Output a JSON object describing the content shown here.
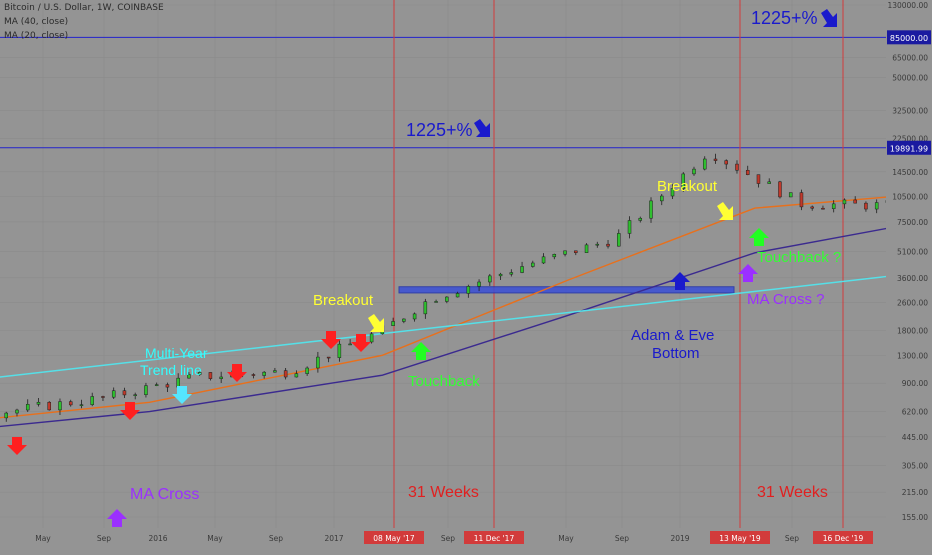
{
  "header": {
    "title": "Bitcoin / U.S. Dollar, 1W, COINBASE",
    "ma40": "MA (40, close)",
    "ma20": "MA (20, close)"
  },
  "colors": {
    "background": "#949494",
    "grid": "#8a8a8a",
    "candle_up": "#2fbf2f",
    "candle_down": "#c0392b",
    "ma_orange": "#e8701c",
    "ma_purple": "#3b2a8f",
    "trend_line": "#55e0e8",
    "horizontal_line": "#2222cc",
    "vertical_line": "#d23b3b",
    "support_zone": "#3a4fd8"
  },
  "chart_data": {
    "type": "candlestick",
    "y_scale": "log",
    "y_axis_ticks": [
      130000,
      85000,
      65000,
      50000,
      32500,
      22500,
      14500,
      10500,
      7500,
      5100,
      3600,
      2600,
      1800,
      1300,
      900,
      620,
      445,
      305,
      215,
      155
    ],
    "x_axis_ticks": [
      "May",
      "Sep",
      "2016",
      "May",
      "Sep",
      "2017",
      "08 May '17",
      "Sep",
      "11 Dec '17",
      "May",
      "Sep",
      "2019",
      "13 May '19",
      "Sep",
      "16 Dec '19"
    ],
    "price_tags": [
      {
        "label": "85000.00",
        "value": 85000
      },
      {
        "label": "19891.99",
        "value": 19891.99
      }
    ],
    "vertical_markers": [
      "08 May '17",
      "11 Dec '17",
      "13 May '19",
      "16 Dec '19"
    ],
    "support_zone": {
      "low": 2950,
      "high": 3200
    },
    "trend_line": [
      {
        "date": "Feb 2015",
        "value": 265
      },
      {
        "date": "Jul 2019",
        "value": 10500
      }
    ],
    "weekly_closes": {
      "start": "Feb 2015",
      "end": "Jun 2019",
      "points": [
        {
          "date": "Feb 2015",
          "close": 250
        },
        {
          "date": "Apr 2015",
          "close": 230
        },
        {
          "date": "Jul 2015",
          "close": 280
        },
        {
          "date": "Aug 2015",
          "close": 215
        },
        {
          "date": "Oct 2015",
          "close": 270
        },
        {
          "date": "Nov 2015",
          "close": 400
        },
        {
          "date": "Dec 2015",
          "close": 430
        },
        {
          "date": "Mar 2016",
          "close": 410
        },
        {
          "date": "Jun 2016",
          "close": 720
        },
        {
          "date": "Aug 2016",
          "close": 575
        },
        {
          "date": "Nov 2016",
          "close": 740
        },
        {
          "date": "Jan 2017",
          "close": 980
        },
        {
          "date": "Mar 2017",
          "close": 1050
        },
        {
          "date": "May 2017",
          "close": 1800
        },
        {
          "date": "Jun 2017",
          "close": 2700
        },
        {
          "date": "Aug 2017",
          "close": 4200
        },
        {
          "date": "Oct 2017",
          "close": 6000
        },
        {
          "date": "Dec 2017",
          "close": 19000
        },
        {
          "date": "Feb 2018",
          "close": 9500
        },
        {
          "date": "Apr 2018",
          "close": 9300
        },
        {
          "date": "Jun 2018",
          "close": 6500
        },
        {
          "date": "Aug 2018",
          "close": 6400
        },
        {
          "date": "Nov 2018",
          "close": 4000
        },
        {
          "date": "Dec 2018",
          "close": 3300
        },
        {
          "date": "Feb 2019",
          "close": 3600
        },
        {
          "date": "Apr 2019",
          "close": 5200
        },
        {
          "date": "May 2019",
          "close": 8000
        },
        {
          "date": "Jun 2019",
          "close": 8300
        }
      ]
    },
    "ma20": [
      {
        "date": "Feb 2015",
        "value": 260
      },
      {
        "date": "Aug 2015",
        "value": 250
      },
      {
        "date": "Jan 2016",
        "value": 380
      },
      {
        "date": "Jun 2016",
        "value": 480
      },
      {
        "date": "Dec 2016",
        "value": 700
      },
      {
        "date": "May 2017",
        "value": 1300
      },
      {
        "date": "Sep 2017",
        "value": 3500
      },
      {
        "date": "Jan 2018",
        "value": 9000
      },
      {
        "date": "Apr 2018",
        "value": 10500
      },
      {
        "date": "Aug 2018",
        "value": 7300
      },
      {
        "date": "Dec 2018",
        "value": 5000
      },
      {
        "date": "Mar 2019",
        "value": 3800
      },
      {
        "date": "Jun 2019",
        "value": 5500
      }
    ],
    "ma40": [
      {
        "date": "Feb 2015",
        "value": 240
      },
      {
        "date": "Aug 2015",
        "value": 255
      },
      {
        "date": "Jan 2016",
        "value": 330
      },
      {
        "date": "Jun 2016",
        "value": 430
      },
      {
        "date": "Dec 2016",
        "value": 620
      },
      {
        "date": "May 2017",
        "value": 1000
      },
      {
        "date": "Sep 2017",
        "value": 2200
      },
      {
        "date": "Jan 2018",
        "value": 5000
      },
      {
        "date": "Jun 2018",
        "value": 8800
      },
      {
        "date": "Oct 2018",
        "value": 8000
      },
      {
        "date": "Feb 2019",
        "value": 6000
      },
      {
        "date": "Jun 2019",
        "value": 5600
      }
    ],
    "annotations": [
      {
        "text": "1225+%",
        "color": "#1a1acc"
      },
      {
        "text": "1225+%",
        "color": "#1a1acc"
      },
      {
        "text": "Breakout",
        "color": "#ffff33"
      },
      {
        "text": "Breakout",
        "color": "#ffff33"
      },
      {
        "text": "Multi-Year",
        "color": "#33ffff"
      },
      {
        "text": "Trend line",
        "color": "#33ffff"
      },
      {
        "text": "Touchback",
        "color": "#33ff33"
      },
      {
        "text": "Touchback ?",
        "color": "#33ff33"
      },
      {
        "text": "MA Cross",
        "color": "#9b30ff"
      },
      {
        "text": "MA Cross ?",
        "color": "#9b30ff"
      },
      {
        "text": "Adam & Eve",
        "color": "#1a1acc"
      },
      {
        "text": "Bottom",
        "color": "#1a1acc"
      },
      {
        "text": "31 Weeks",
        "color": "#e02020"
      },
      {
        "text": "31 Weeks",
        "color": "#e02020"
      }
    ]
  }
}
